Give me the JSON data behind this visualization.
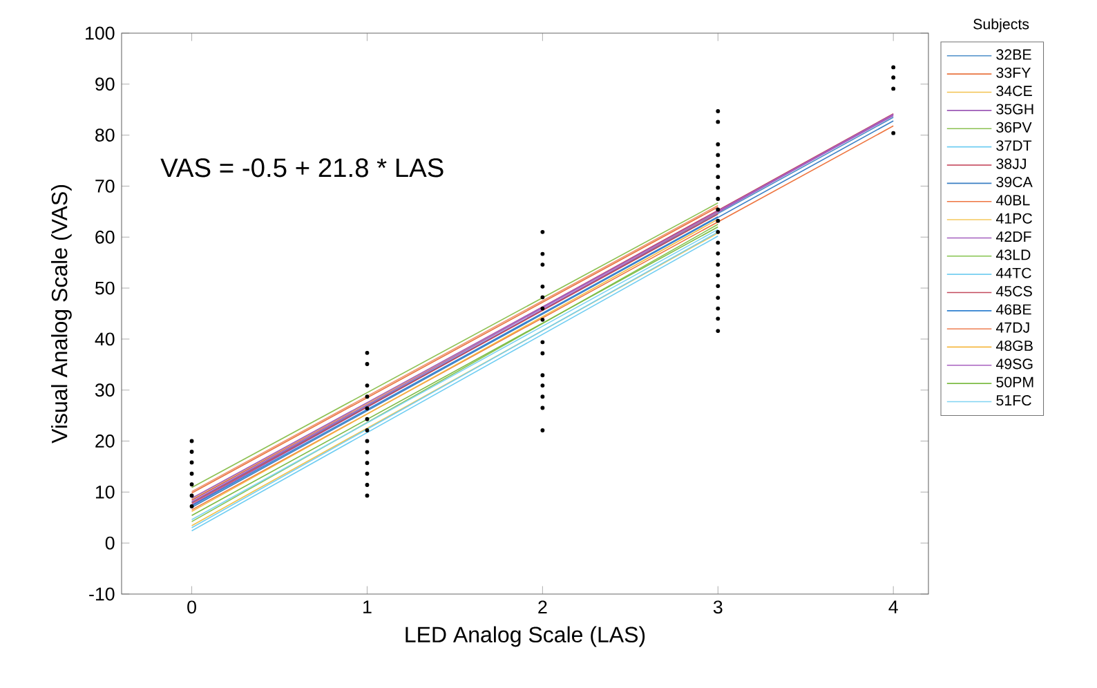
{
  "chart_data": {
    "type": "line",
    "xlabel": "LED Analog Scale (LAS)",
    "ylabel": "Visual Analog Scale (VAS)",
    "legend_title": "Subjects",
    "legend": "top right",
    "annotations": [
      "VAS = -0.5 + 21.8 * LAS"
    ],
    "xlim": [
      -0.4,
      4.2
    ],
    "ylim": [
      -10,
      100
    ],
    "xticks": [
      0,
      1,
      2,
      3,
      4
    ],
    "yticks": [
      -10,
      0,
      10,
      20,
      30,
      40,
      50,
      60,
      70,
      80,
      90,
      100
    ],
    "series": [
      {
        "name": "32BE",
        "color": "#4d8fc9",
        "x": [
          0,
          4
        ],
        "values": [
          8.0,
          83.5
        ]
      },
      {
        "name": "33FY",
        "color": "#e8733f",
        "x": [
          0,
          3
        ],
        "values": [
          9.8,
          65.9
        ]
      },
      {
        "name": "34CE",
        "color": "#f2c14e",
        "x": [
          0,
          3
        ],
        "values": [
          3.4,
          60.8
        ]
      },
      {
        "name": "35GH",
        "color": "#9b59b6",
        "x": [
          0,
          4
        ],
        "values": [
          7.5,
          84.0
        ]
      },
      {
        "name": "36PV",
        "color": "#8cc152",
        "x": [
          0,
          3
        ],
        "values": [
          10.9,
          66.7
        ]
      },
      {
        "name": "37DT",
        "color": "#6fcdf2",
        "x": [
          0,
          3
        ],
        "values": [
          2.4,
          60.2
        ]
      },
      {
        "name": "38JJ",
        "color": "#c0394f",
        "x": [
          0,
          4
        ],
        "values": [
          8.4,
          84.2
        ]
      },
      {
        "name": "39CA",
        "color": "#3a7fc4",
        "x": [
          0,
          4
        ],
        "values": [
          7.0,
          82.8
        ]
      },
      {
        "name": "40BL",
        "color": "#ee7540",
        "x": [
          0,
          4
        ],
        "values": [
          6.5,
          81.8
        ]
      },
      {
        "name": "41PC",
        "color": "#f4c95d",
        "x": [
          0,
          3
        ],
        "values": [
          8.6,
          65.0
        ]
      },
      {
        "name": "42DF",
        "color": "#a45fbf",
        "x": [
          0,
          4
        ],
        "values": [
          8.8,
          83.8
        ]
      },
      {
        "name": "43LD",
        "color": "#86c44f",
        "x": [
          0,
          3
        ],
        "values": [
          4.2,
          62.5
        ]
      },
      {
        "name": "44TC",
        "color": "#74cff0",
        "x": [
          0,
          3
        ],
        "values": [
          3.0,
          61.0
        ]
      },
      {
        "name": "45CS",
        "color": "#c24a5c",
        "x": [
          0,
          3
        ],
        "values": [
          7.8,
          64.5
        ]
      },
      {
        "name": "46BE",
        "color": "#2d7fd0",
        "x": [
          0,
          3
        ],
        "values": [
          7.3,
          64.0
        ]
      },
      {
        "name": "47DJ",
        "color": "#f0906a",
        "x": [
          0,
          3
        ],
        "values": [
          10.1,
          66.2
        ]
      },
      {
        "name": "48GB",
        "color": "#f5b942",
        "x": [
          0,
          3
        ],
        "values": [
          6.2,
          63.5
        ]
      },
      {
        "name": "49SG",
        "color": "#a860c0",
        "x": [
          0,
          4
        ],
        "values": [
          8.1,
          84.1
        ]
      },
      {
        "name": "50PM",
        "color": "#7dbb45",
        "x": [
          0,
          3
        ],
        "values": [
          5.4,
          62.0
        ]
      },
      {
        "name": "51FC",
        "color": "#7fd3f2",
        "x": [
          0,
          3
        ],
        "values": [
          4.6,
          61.5
        ]
      },
      {
        "type": "scatter",
        "marker": "circle",
        "color": "#000000",
        "x": [
          0,
          0,
          0,
          0,
          0,
          0,
          0,
          1,
          1,
          1,
          1,
          1,
          1,
          1,
          1,
          1,
          1,
          1,
          1,
          1,
          2,
          2,
          2,
          2,
          2,
          2,
          2,
          2,
          2,
          2,
          2,
          2,
          2,
          2,
          3,
          3,
          3,
          3,
          3,
          3,
          3,
          3,
          3,
          3,
          3,
          3,
          3,
          3,
          3,
          3,
          3,
          3,
          3,
          3,
          4,
          4,
          4,
          4
        ],
        "values": [
          20.0,
          17.9,
          15.8,
          13.6,
          11.5,
          9.3,
          7.2,
          37.3,
          35.1,
          30.9,
          28.7,
          26.4,
          24.3,
          22.1,
          20.0,
          17.8,
          15.7,
          13.6,
          11.4,
          9.3,
          61.0,
          56.7,
          54.6,
          50.3,
          48.2,
          46.0,
          43.8,
          39.4,
          37.2,
          32.9,
          30.9,
          28.7,
          26.5,
          22.1,
          84.7,
          82.6,
          78.2,
          76.1,
          74.0,
          71.8,
          69.7,
          67.5,
          65.4,
          63.2,
          61.0,
          58.9,
          56.8,
          54.6,
          52.5,
          50.4,
          48.1,
          46.0,
          44.0,
          41.6,
          93.3,
          91.3,
          89.1,
          80.4
        ]
      }
    ]
  }
}
